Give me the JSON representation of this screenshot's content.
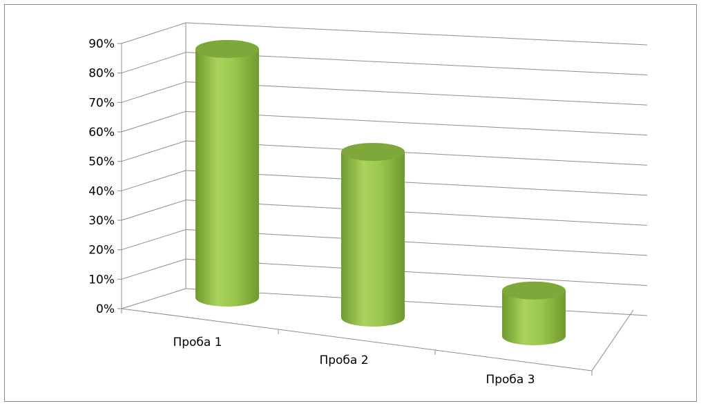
{
  "chart_data": {
    "type": "bar",
    "style": "3d-cylinder",
    "categories": [
      "Проба 1",
      "Проба 2",
      "Проба 3"
    ],
    "values": [
      87,
      58,
      16
    ],
    "value_unit": "%",
    "title": "",
    "xlabel": "",
    "ylabel": "",
    "ylim": [
      0,
      90
    ],
    "yticks": [
      "0%",
      "10%",
      "20%",
      "30%",
      "40%",
      "50%",
      "60%",
      "70%",
      "80%",
      "90%"
    ],
    "grid": true,
    "legend": "none",
    "colors": {
      "bar_light": "#a9d35c",
      "bar_mid": "#8fbe45",
      "bar_dark": "#6f9a2e",
      "bar_top": "#7fa83a",
      "grid": "#8c8c8c",
      "frame": "#8a8a8a"
    }
  }
}
